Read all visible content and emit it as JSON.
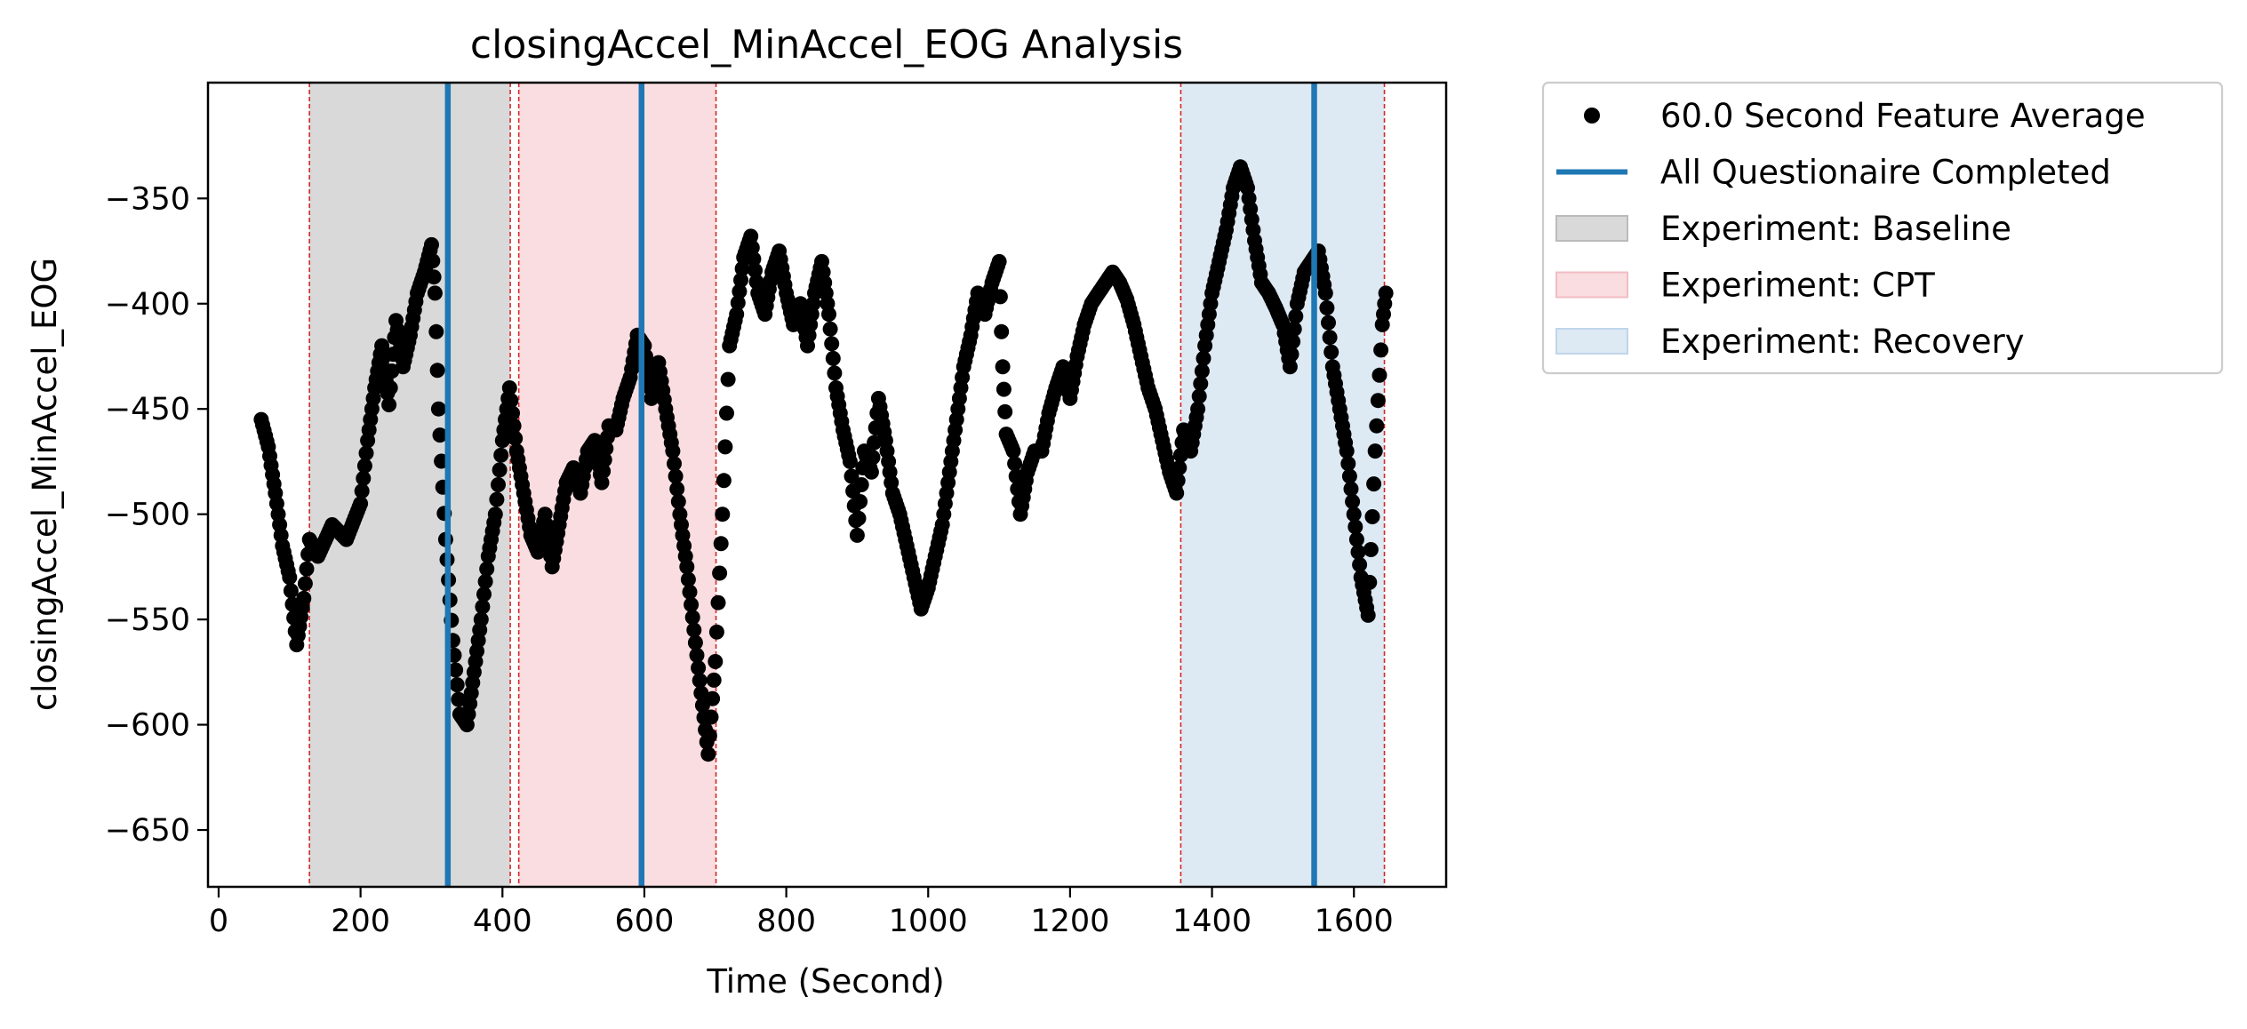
{
  "chart_data": {
    "type": "scatter",
    "title": "closingAccel_MinAccel_EOG Analysis",
    "xlabel": "Time (Second)",
    "ylabel": "closingAccel_MinAccel_EOG",
    "xlim": [
      -15,
      1730
    ],
    "ylim": [
      -677,
      -295
    ],
    "xticks": [
      0,
      200,
      400,
      600,
      800,
      1000,
      1200,
      1400,
      1600
    ],
    "yticks": [
      -350,
      -400,
      -450,
      -500,
      -550,
      -600,
      -650
    ],
    "xtick_labels": [
      "0",
      "200",
      "400",
      "600",
      "800",
      "1000",
      "1200",
      "1400",
      "1600"
    ],
    "ytick_labels": [
      "−350",
      "−400",
      "−450",
      "−500",
      "−550",
      "−600",
      "−650"
    ],
    "grid": false,
    "legend_position": "outside-right",
    "series": [
      {
        "name": "60.0 Second Feature Average",
        "color": "#000000",
        "marker": "circle",
        "keypoints": [
          [
            60,
            -455
          ],
          [
            70,
            -468
          ],
          [
            80,
            -490
          ],
          [
            90,
            -515
          ],
          [
            100,
            -530
          ],
          [
            110,
            -562
          ],
          [
            120,
            -540
          ],
          [
            128,
            -512
          ],
          [
            140,
            -520
          ],
          [
            160,
            -505
          ],
          [
            180,
            -512
          ],
          [
            200,
            -495
          ],
          [
            210,
            -465
          ],
          [
            220,
            -440
          ],
          [
            230,
            -420
          ],
          [
            240,
            -448
          ],
          [
            250,
            -408
          ],
          [
            260,
            -430
          ],
          [
            270,
            -415
          ],
          [
            280,
            -395
          ],
          [
            290,
            -385
          ],
          [
            300,
            -372
          ],
          [
            305,
            -395
          ],
          [
            310,
            -450
          ],
          [
            320,
            -512
          ],
          [
            330,
            -560
          ],
          [
            340,
            -595
          ],
          [
            350,
            -600
          ],
          [
            360,
            -575
          ],
          [
            370,
            -550
          ],
          [
            380,
            -520
          ],
          [
            390,
            -500
          ],
          [
            400,
            -465
          ],
          [
            410,
            -440
          ],
          [
            420,
            -470
          ],
          [
            430,
            -490
          ],
          [
            440,
            -510
          ],
          [
            450,
            -518
          ],
          [
            460,
            -500
          ],
          [
            470,
            -525
          ],
          [
            480,
            -505
          ],
          [
            490,
            -485
          ],
          [
            500,
            -478
          ],
          [
            510,
            -490
          ],
          [
            520,
            -470
          ],
          [
            530,
            -465
          ],
          [
            540,
            -485
          ],
          [
            550,
            -458
          ],
          [
            560,
            -460
          ],
          [
            570,
            -445
          ],
          [
            580,
            -435
          ],
          [
            590,
            -415
          ],
          [
            600,
            -420
          ],
          [
            610,
            -445
          ],
          [
            620,
            -428
          ],
          [
            630,
            -450
          ],
          [
            640,
            -470
          ],
          [
            650,
            -500
          ],
          [
            660,
            -525
          ],
          [
            670,
            -555
          ],
          [
            680,
            -585
          ],
          [
            690,
            -614
          ],
          [
            700,
            -570
          ],
          [
            710,
            -500
          ],
          [
            720,
            -420
          ],
          [
            730,
            -405
          ],
          [
            740,
            -378
          ],
          [
            750,
            -368
          ],
          [
            760,
            -395
          ],
          [
            770,
            -405
          ],
          [
            780,
            -385
          ],
          [
            790,
            -375
          ],
          [
            800,
            -395
          ],
          [
            810,
            -410
          ],
          [
            820,
            -400
          ],
          [
            830,
            -420
          ],
          [
            840,
            -395
          ],
          [
            850,
            -380
          ],
          [
            860,
            -405
          ],
          [
            870,
            -440
          ],
          [
            880,
            -460
          ],
          [
            890,
            -475
          ],
          [
            900,
            -510
          ],
          [
            910,
            -470
          ],
          [
            920,
            -480
          ],
          [
            930,
            -445
          ],
          [
            940,
            -465
          ],
          [
            950,
            -490
          ],
          [
            960,
            -500
          ],
          [
            970,
            -515
          ],
          [
            980,
            -530
          ],
          [
            990,
            -545
          ],
          [
            1000,
            -535
          ],
          [
            1010,
            -520
          ],
          [
            1020,
            -505
          ],
          [
            1030,
            -480
          ],
          [
            1040,
            -455
          ],
          [
            1050,
            -430
          ],
          [
            1060,
            -415
          ],
          [
            1070,
            -395
          ],
          [
            1080,
            -405
          ],
          [
            1090,
            -390
          ],
          [
            1100,
            -380
          ],
          [
            1105,
            -430
          ],
          [
            1110,
            -462
          ],
          [
            1120,
            -470
          ],
          [
            1130,
            -500
          ],
          [
            1140,
            -480
          ],
          [
            1150,
            -470
          ],
          [
            1160,
            -470
          ],
          [
            1170,
            -452
          ],
          [
            1180,
            -440
          ],
          [
            1190,
            -430
          ],
          [
            1200,
            -445
          ],
          [
            1210,
            -425
          ],
          [
            1220,
            -410
          ],
          [
            1230,
            -400
          ],
          [
            1240,
            -395
          ],
          [
            1250,
            -390
          ],
          [
            1260,
            -385
          ],
          [
            1270,
            -390
          ],
          [
            1280,
            -398
          ],
          [
            1290,
            -410
          ],
          [
            1300,
            -425
          ],
          [
            1310,
            -440
          ],
          [
            1320,
            -450
          ],
          [
            1330,
            -465
          ],
          [
            1340,
            -480
          ],
          [
            1350,
            -490
          ],
          [
            1360,
            -460
          ],
          [
            1370,
            -470
          ],
          [
            1380,
            -450
          ],
          [
            1390,
            -420
          ],
          [
            1400,
            -395
          ],
          [
            1410,
            -380
          ],
          [
            1420,
            -365
          ],
          [
            1430,
            -345
          ],
          [
            1440,
            -335
          ],
          [
            1450,
            -345
          ],
          [
            1460,
            -370
          ],
          [
            1470,
            -390
          ],
          [
            1480,
            -395
          ],
          [
            1490,
            -402
          ],
          [
            1500,
            -410
          ],
          [
            1510,
            -430
          ],
          [
            1520,
            -400
          ],
          [
            1530,
            -385
          ],
          [
            1540,
            -380
          ],
          [
            1550,
            -375
          ],
          [
            1560,
            -395
          ],
          [
            1570,
            -430
          ],
          [
            1580,
            -450
          ],
          [
            1590,
            -470
          ],
          [
            1600,
            -500
          ],
          [
            1610,
            -530
          ],
          [
            1620,
            -548
          ],
          [
            1630,
            -470
          ],
          [
            1640,
            -410
          ],
          [
            1645,
            -395
          ]
        ]
      }
    ],
    "vlines": {
      "name": "All Questionaire Completed",
      "color": "#1f77b4",
      "x": [
        323,
        596,
        1544
      ]
    },
    "spans": [
      {
        "name": "Experiment: Baseline",
        "start": 128,
        "end": 411,
        "color": "#d9d9d9"
      },
      {
        "name": "Experiment: CPT",
        "start": 423,
        "end": 701,
        "color": "#f9dde0"
      },
      {
        "name": "Experiment: Recovery",
        "start": 1356,
        "end": 1643,
        "color": "#dde9f3"
      }
    ],
    "boundary_lines": {
      "color": "#d62728",
      "x": [
        128,
        411,
        423,
        701,
        1356,
        1643
      ]
    },
    "legend": [
      {
        "label": "60.0 Second Feature Average",
        "kind": "marker",
        "color": "#000000"
      },
      {
        "label": "All Questionaire Completed",
        "kind": "line",
        "color": "#1f77b4"
      },
      {
        "label": "Experiment: Baseline",
        "kind": "patch",
        "color": "#d9d9d9"
      },
      {
        "label": "Experiment: CPT",
        "kind": "patch",
        "color": "#f9dde0"
      },
      {
        "label": "Experiment: Recovery",
        "kind": "patch",
        "color": "#dde9f3"
      }
    ]
  }
}
